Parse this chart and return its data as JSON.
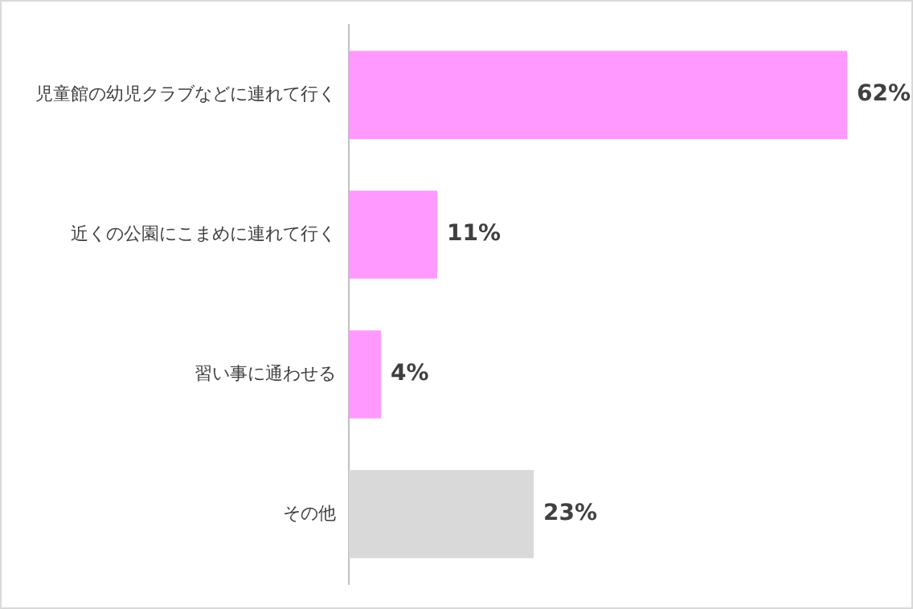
{
  "chart_data": {
    "type": "bar",
    "orientation": "horizontal",
    "categories": [
      "児童館の幼児クラブなどに連れて行く",
      "近くの公園にこまめに連れて行く",
      "習い事に通わせる",
      "その他"
    ],
    "values": [
      62,
      11,
      4,
      23
    ],
    "colors": [
      "#ff99ff",
      "#ff99ff",
      "#ff99ff",
      "#d9d9d9"
    ],
    "value_labels": [
      "62%",
      "11%",
      "4%",
      "23%"
    ],
    "xlim": [
      0,
      70
    ],
    "grid": false,
    "legend": false,
    "tick_labels": "y"
  }
}
